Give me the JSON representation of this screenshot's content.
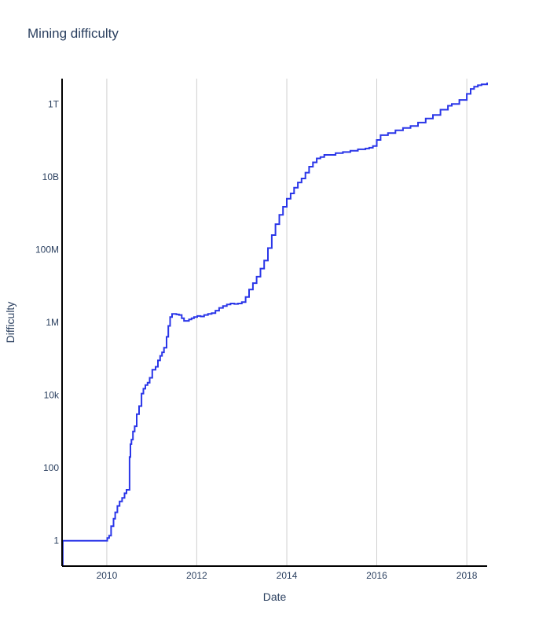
{
  "chart_data": {
    "type": "line",
    "title": "Mining difficulty",
    "xlabel": "Date",
    "ylabel": "Difficulty",
    "yscale": "log",
    "xlim": [
      "2009-01-03",
      "2018-06-15"
    ],
    "ylim": [
      0.2,
      5000000000000
    ],
    "grid": {
      "x": true,
      "y": false
    },
    "line_color": "#2a36e8",
    "x_ticks": [
      {
        "value": "2010-01-01",
        "label": "2010"
      },
      {
        "value": "2012-01-01",
        "label": "2012"
      },
      {
        "value": "2014-01-01",
        "label": "2014"
      },
      {
        "value": "2016-01-01",
        "label": "2016"
      },
      {
        "value": "2018-01-01",
        "label": "2018"
      }
    ],
    "y_ticks": [
      {
        "value": 1,
        "label": "1"
      },
      {
        "value": 100,
        "label": "100"
      },
      {
        "value": 10000,
        "label": "10k"
      },
      {
        "value": 1000000,
        "label": "1M"
      },
      {
        "value": 100000000,
        "label": "100M"
      },
      {
        "value": 10000000000,
        "label": "10B"
      },
      {
        "value": 1000000000000,
        "label": "1T"
      }
    ],
    "series": [
      {
        "x": [
          "2009-01-03",
          "2009-01-09",
          "2009-12-30",
          "2010-01-05",
          "2010-01-20",
          "2010-02-05",
          "2010-02-25",
          "2010-03-10",
          "2010-03-28",
          "2010-04-15",
          "2010-05-05",
          "2010-05-25",
          "2010-06-10",
          "2010-07-05",
          "2010-07-12",
          "2010-07-20",
          "2010-08-01",
          "2010-08-15",
          "2010-09-01",
          "2010-09-20",
          "2010-10-10",
          "2010-10-25",
          "2010-11-10",
          "2010-11-28",
          "2010-12-15",
          "2011-01-05",
          "2011-02-01",
          "2011-02-20",
          "2011-03-10",
          "2011-03-25",
          "2011-04-10",
          "2011-05-01",
          "2011-05-15",
          "2011-05-30",
          "2011-06-15",
          "2011-07-01",
          "2011-07-20",
          "2011-08-10",
          "2011-09-01",
          "2011-09-20",
          "2011-10-10",
          "2011-10-30",
          "2011-11-20",
          "2011-12-10",
          "2012-01-05",
          "2012-02-01",
          "2012-03-01",
          "2012-04-01",
          "2012-05-01",
          "2012-06-01",
          "2012-07-01",
          "2012-08-01",
          "2012-09-01",
          "2012-10-01",
          "2012-11-01",
          "2012-12-01",
          "2013-01-01",
          "2013-02-01",
          "2013-03-01",
          "2013-04-01",
          "2013-05-01",
          "2013-06-01",
          "2013-07-01",
          "2013-08-01",
          "2013-09-01",
          "2013-10-01",
          "2013-11-01",
          "2013-12-01",
          "2014-01-01",
          "2014-02-01",
          "2014-03-01",
          "2014-04-01",
          "2014-05-01",
          "2014-06-01",
          "2014-07-01",
          "2014-08-01",
          "2014-09-01",
          "2014-10-01",
          "2014-11-01",
          "2014-12-01",
          "2015-02-01",
          "2015-04-01",
          "2015-06-01",
          "2015-08-01",
          "2015-10-01",
          "2015-11-01",
          "2015-12-01",
          "2016-01-01",
          "2016-02-01",
          "2016-04-01",
          "2016-06-01",
          "2016-08-01",
          "2016-10-01",
          "2016-12-01",
          "2017-02-01",
          "2017-04-01",
          "2017-06-01",
          "2017-08-01",
          "2017-09-01",
          "2017-11-01",
          "2018-01-01",
          "2018-02-01",
          "2018-03-01",
          "2018-04-01",
          "2018-05-01",
          "2018-06-15"
        ],
        "y": [
          0.2,
          1,
          1,
          1.18,
          1.38,
          2.5,
          4,
          6,
          9,
          12,
          15,
          20,
          25,
          200,
          450,
          600,
          1000,
          1400,
          3000,
          5000,
          11000,
          15000,
          19000,
          22000,
          30000,
          50000,
          60000,
          90000,
          120000,
          150000,
          200000,
          400000,
          800000,
          1400000,
          1700000,
          1700000,
          1650000,
          1600000,
          1300000,
          1100000,
          1100000,
          1200000,
          1300000,
          1400000,
          1500000,
          1450000,
          1600000,
          1700000,
          1800000,
          2100000,
          2500000,
          2800000,
          3100000,
          3300000,
          3200000,
          3300000,
          3600000,
          5000000,
          8000000,
          12000000,
          18000000,
          30000000,
          50000000,
          110000000,
          250000000,
          500000000,
          900000000,
          1500000000,
          2500000000,
          3500000000,
          5000000000,
          7000000000,
          9000000000,
          13000000000,
          19000000000,
          25000000000,
          32000000000,
          35000000000,
          40000000000,
          40000000000,
          45000000000,
          48000000000,
          52000000000,
          57000000000,
          60000000000,
          63000000000,
          70000000000,
          103000000000,
          140000000000,
          160000000000,
          190000000000,
          220000000000,
          250000000000,
          310000000000,
          400000000000,
          500000000000,
          700000000000,
          900000000000,
          1000000000000,
          1300000000000,
          1900000000000,
          2600000000000,
          3000000000000,
          3300000000000,
          3500000000000,
          3900000000000
        ]
      }
    ]
  }
}
